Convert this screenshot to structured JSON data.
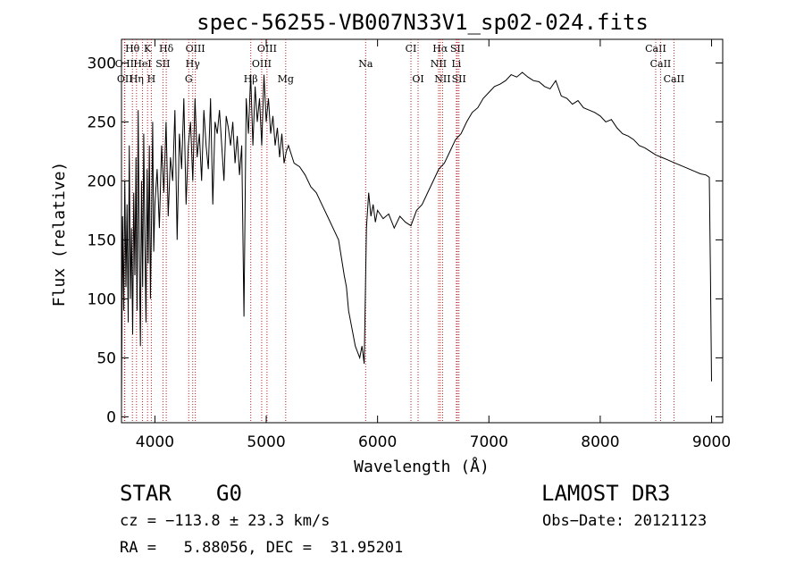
{
  "chart_data": {
    "type": "line",
    "title": "spec-56255-VB007N33V1_sp02-024.fits",
    "xlabel": "Wavelength (Å)",
    "ylabel": "Flux (relative)",
    "xlim": [
      3700,
      9100
    ],
    "ylim": [
      -5,
      320
    ],
    "x_ticks": [
      4000,
      5000,
      6000,
      7000,
      8000,
      9000
    ],
    "y_ticks": [
      0,
      50,
      100,
      150,
      200,
      250,
      300
    ],
    "grid": false,
    "line_color": "#000000",
    "marker_color": "#b22222",
    "series": [
      {
        "name": "flux",
        "x": [
          3700,
          3710,
          3720,
          3730,
          3740,
          3750,
          3760,
          3770,
          3780,
          3790,
          3800,
          3810,
          3820,
          3830,
          3840,
          3850,
          3860,
          3870,
          3880,
          3890,
          3900,
          3910,
          3920,
          3930,
          3940,
          3950,
          3960,
          3970,
          3980,
          3990,
          4000,
          4020,
          4040,
          4060,
          4080,
          4100,
          4120,
          4140,
          4160,
          4180,
          4200,
          4220,
          4240,
          4260,
          4280,
          4300,
          4320,
          4340,
          4360,
          4380,
          4400,
          4420,
          4440,
          4460,
          4480,
          4500,
          4520,
          4540,
          4560,
          4580,
          4600,
          4620,
          4640,
          4660,
          4680,
          4700,
          4720,
          4740,
          4760,
          4780,
          4800,
          4820,
          4840,
          4860,
          4880,
          4900,
          4920,
          4940,
          4960,
          4980,
          5000,
          5020,
          5040,
          5060,
          5080,
          5100,
          5120,
          5140,
          5160,
          5180,
          5200,
          5250,
          5300,
          5350,
          5400,
          5450,
          5500,
          5550,
          5600,
          5650,
          5700,
          5720,
          5740,
          5760,
          5780,
          5800,
          5820,
          5840,
          5860,
          5880,
          5900,
          5920,
          5940,
          5960,
          5980,
          6000,
          6050,
          6100,
          6150,
          6200,
          6250,
          6300,
          6350,
          6400,
          6450,
          6500,
          6550,
          6600,
          6650,
          6700,
          6750,
          6800,
          6850,
          6900,
          6950,
          7000,
          7050,
          7100,
          7150,
          7200,
          7250,
          7300,
          7350,
          7400,
          7450,
          7500,
          7550,
          7600,
          7650,
          7700,
          7750,
          7800,
          7850,
          7900,
          7950,
          8000,
          8050,
          8100,
          8150,
          8200,
          8250,
          8300,
          8350,
          8400,
          8450,
          8500,
          8550,
          8600,
          8650,
          8700,
          8750,
          8800,
          8850,
          8900,
          8950,
          8980,
          8990,
          9000
        ],
        "y": [
          10,
          170,
          90,
          200,
          110,
          180,
          80,
          230,
          100,
          160,
          70,
          190,
          120,
          220,
          90,
          260,
          140,
          60,
          200,
          110,
          240,
          150,
          80,
          210,
          130,
          230,
          100,
          170,
          250,
          140,
          180,
          210,
          160,
          230,
          190,
          250,
          170,
          220,
          200,
          260,
          150,
          240,
          210,
          270,
          180,
          230,
          250,
          200,
          270,
          220,
          240,
          200,
          260,
          230,
          210,
          270,
          180,
          250,
          240,
          260,
          230,
          200,
          255,
          245,
          230,
          250,
          215,
          238,
          205,
          230,
          85,
          270,
          240,
          290,
          230,
          280,
          250,
          270,
          230,
          290,
          250,
          270,
          240,
          255,
          230,
          245,
          220,
          240,
          215,
          225,
          230,
          215,
          212,
          205,
          195,
          190,
          180,
          170,
          160,
          150,
          120,
          110,
          90,
          80,
          70,
          60,
          55,
          50,
          60,
          45,
          160,
          190,
          170,
          180,
          165,
          175,
          168,
          172,
          160,
          170,
          165,
          162,
          175,
          180,
          190,
          200,
          210,
          215,
          225,
          235,
          240,
          250,
          258,
          262,
          270,
          275,
          280,
          282,
          285,
          290,
          288,
          292,
          288,
          285,
          284,
          280,
          278,
          285,
          272,
          270,
          265,
          268,
          262,
          260,
          258,
          255,
          250,
          252,
          245,
          240,
          238,
          235,
          230,
          228,
          225,
          222,
          220,
          218,
          216,
          214,
          212,
          210,
          208,
          206,
          205,
          203,
          120,
          30
        ]
      }
    ],
    "line_markers": [
      {
        "label": "Hθ",
        "wl": 3798,
        "row": 0
      },
      {
        "label": "K",
        "wl": 3934,
        "row": 0
      },
      {
        "label": "Hδ",
        "wl": 4102,
        "row": 0
      },
      {
        "label": "OIII",
        "wl": 4363,
        "row": 0
      },
      {
        "label": "OIII",
        "wl": 5007,
        "row": 0
      },
      {
        "label": "CI",
        "wl": 6300,
        "row": 0
      },
      {
        "label": "Hα",
        "wl": 6563,
        "row": 0
      },
      {
        "label": "SII",
        "wl": 6717,
        "row": 0
      },
      {
        "label": "CaII",
        "wl": 8498,
        "row": 0
      },
      {
        "label": "O II",
        "wl": 3727,
        "row": 1
      },
      {
        "label": "HeI",
        "wl": 3889,
        "row": 1
      },
      {
        "label": "SII",
        "wl": 4072,
        "row": 1
      },
      {
        "label": "Hγ",
        "wl": 4340,
        "row": 1
      },
      {
        "label": "OIII",
        "wl": 4959,
        "row": 1
      },
      {
        "label": "Na",
        "wl": 5893,
        "row": 1
      },
      {
        "label": "NII",
        "wl": 6548,
        "row": 1
      },
      {
        "label": "Li",
        "wl": 6708,
        "row": 1
      },
      {
        "label": "CaII",
        "wl": 8542,
        "row": 1
      },
      {
        "label": "OII",
        "wl": 3730,
        "row": 2
      },
      {
        "label": "Hη",
        "wl": 3835,
        "row": 2
      },
      {
        "label": "H",
        "wl": 3968,
        "row": 2
      },
      {
        "label": "G",
        "wl": 4304,
        "row": 2
      },
      {
        "label": "Hβ",
        "wl": 4861,
        "row": 2
      },
      {
        "label": "Mg",
        "wl": 5175,
        "row": 2
      },
      {
        "label": "OI",
        "wl": 6364,
        "row": 2
      },
      {
        "label": "NII",
        "wl": 6584,
        "row": 2
      },
      {
        "label": "SII",
        "wl": 6731,
        "row": 2
      },
      {
        "label": "CaII",
        "wl": 8662,
        "row": 2
      }
    ]
  },
  "footer": {
    "object_type": "STAR",
    "subclass": "G0",
    "survey": "LAMOST DR3",
    "cz": "cz = −113.8 ± 23.3 km/s",
    "obs_date": "Obs−Date: 20121123",
    "coords": "RA =   5.88056, DEC =  31.95201"
  }
}
